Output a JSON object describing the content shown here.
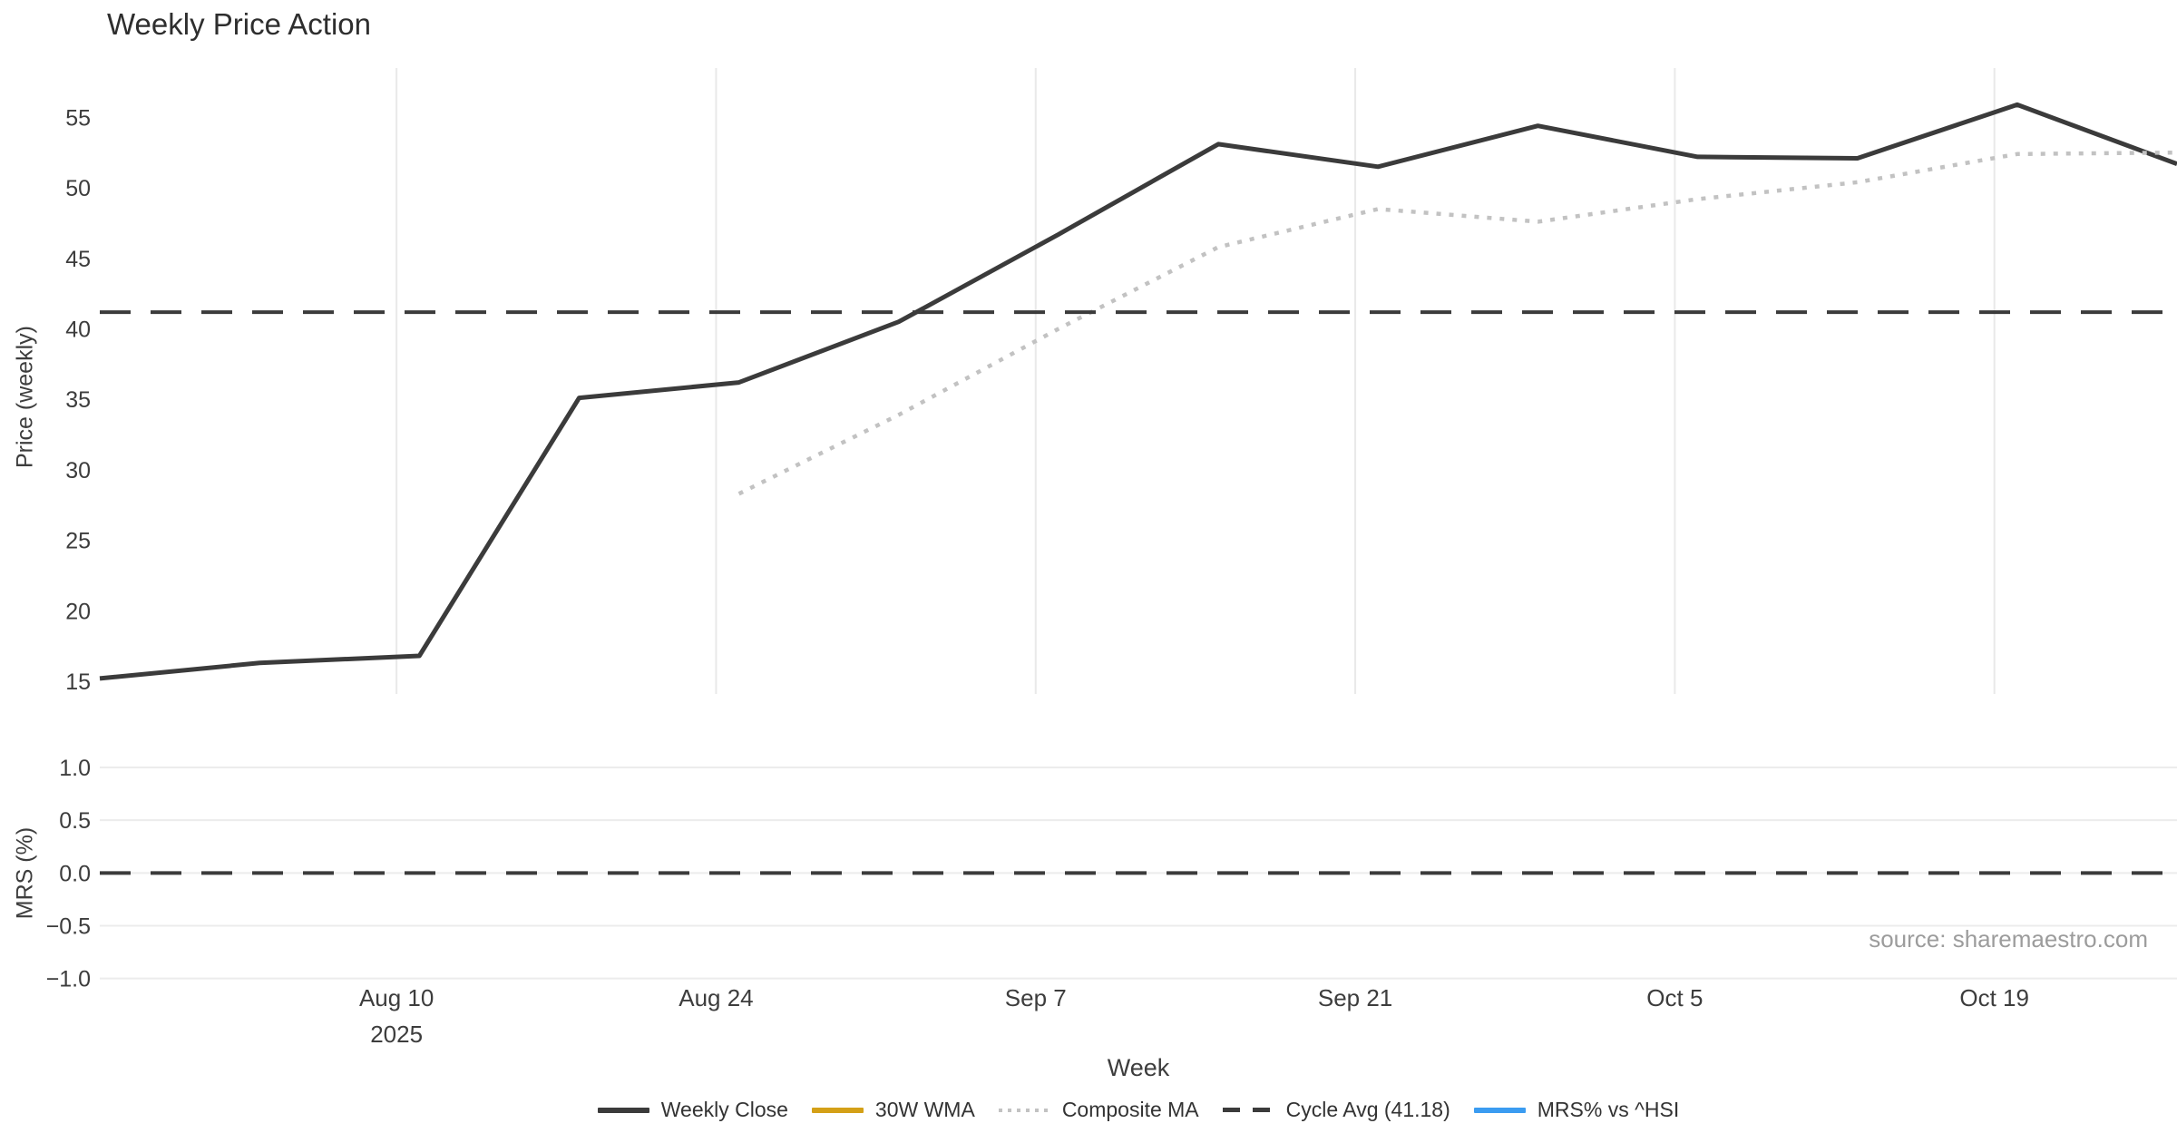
{
  "chart": {
    "title": "Weekly Price Action",
    "x_axis_title": "Week",
    "price_axis_title": "Price (weekly)",
    "mrs_axis_title": "MRS (%)",
    "source": "source: sharemaestro.com"
  },
  "colors": {
    "background": "#ffffff",
    "price_line": "#3b3b3b",
    "wma_line": "#d4a017",
    "composite_line": "#c2c2c2",
    "cycle_avg_line": "#3b3b3b",
    "mrs_line": "#3b9cf1",
    "gridline": "#e9e9e9",
    "mrs_gridline": "#ececec",
    "axis_text": "#3d3d3d",
    "title_text": "#2e2e2e",
    "source_text": "#9c9c9c"
  },
  "chart_data": {
    "type": "line",
    "title": "Weekly Price Action",
    "xlabel": "Week",
    "x_unit": "weekly points (Mondays), day offset from 2025-07-28",
    "x_range_days": [
      0,
      91
    ],
    "grid": "vertical in price panel, horizontal in MRS panel",
    "legend_position": "bottom center",
    "x_ticks": [
      {
        "day": 13,
        "label": "Aug 10",
        "sublabel": "2025"
      },
      {
        "day": 27,
        "label": "Aug 24",
        "sublabel": ""
      },
      {
        "day": 41,
        "label": "Sep 7",
        "sublabel": ""
      },
      {
        "day": 55,
        "label": "Sep 21",
        "sublabel": ""
      },
      {
        "day": 69,
        "label": "Oct 5",
        "sublabel": ""
      },
      {
        "day": 83,
        "label": "Oct 19",
        "sublabel": ""
      }
    ],
    "price_axis": {
      "label": "Price (weekly)",
      "ticks": [
        15,
        20,
        25,
        30,
        35,
        40,
        45,
        50,
        55
      ],
      "range": [
        14.1,
        58.5
      ]
    },
    "mrs_axis": {
      "label": "MRS (%)",
      "ticks": [
        1.0,
        0.5,
        0.0,
        -0.5,
        -1.0
      ],
      "tick_labels": [
        "1.0",
        "0.5",
        "0.0",
        "−0.5",
        "−1.0"
      ],
      "range": [
        -1.115,
        1.155
      ],
      "zero_line_dashed": true
    },
    "series": [
      {
        "name": "Weekly Close",
        "panel": "price",
        "style": "solid",
        "color": "#3b3b3b",
        "width": 5,
        "days": [
          0,
          7,
          14,
          21,
          28,
          35,
          42,
          49,
          56,
          63,
          70,
          77,
          84,
          91
        ],
        "dates": [
          "2025-07-28",
          "2025-08-04",
          "2025-08-11",
          "2025-08-18",
          "2025-08-25",
          "2025-09-01",
          "2025-09-08",
          "2025-09-15",
          "2025-09-22",
          "2025-09-29",
          "2025-10-06",
          "2025-10-13",
          "2025-10-20",
          "2025-10-27"
        ],
        "values": [
          15.2,
          16.3,
          16.8,
          35.1,
          36.2,
          40.5,
          46.7,
          53.1,
          51.5,
          54.4,
          52.2,
          52.1,
          55.9,
          51.7
        ]
      },
      {
        "name": "30W WMA",
        "panel": "price",
        "style": "solid",
        "color": "#d4a017",
        "width": 6,
        "days": [],
        "dates": [],
        "values": []
      },
      {
        "name": "Composite MA",
        "panel": "price",
        "style": "dotted",
        "color": "#c2c2c2",
        "width": 4.5,
        "days": [
          28,
          35,
          42,
          49,
          56,
          63,
          70,
          77,
          84,
          91
        ],
        "dates": [
          "2025-08-25",
          "2025-09-01",
          "2025-09-08",
          "2025-09-15",
          "2025-09-22",
          "2025-09-29",
          "2025-10-06",
          "2025-10-13",
          "2025-10-20",
          "2025-10-27"
        ],
        "values": [
          28.3,
          33.9,
          40.0,
          45.8,
          48.5,
          47.6,
          49.2,
          50.4,
          52.4,
          52.5
        ]
      },
      {
        "name": "Cycle Avg (41.18)",
        "panel": "price",
        "style": "dashed",
        "color": "#3b3b3b",
        "width": 4,
        "constant": 41.18
      },
      {
        "name": "MRS% vs ^HSI",
        "panel": "mrs",
        "style": "solid",
        "color": "#3b9cf1",
        "width": 6,
        "days": [],
        "dates": [],
        "values": []
      }
    ]
  }
}
